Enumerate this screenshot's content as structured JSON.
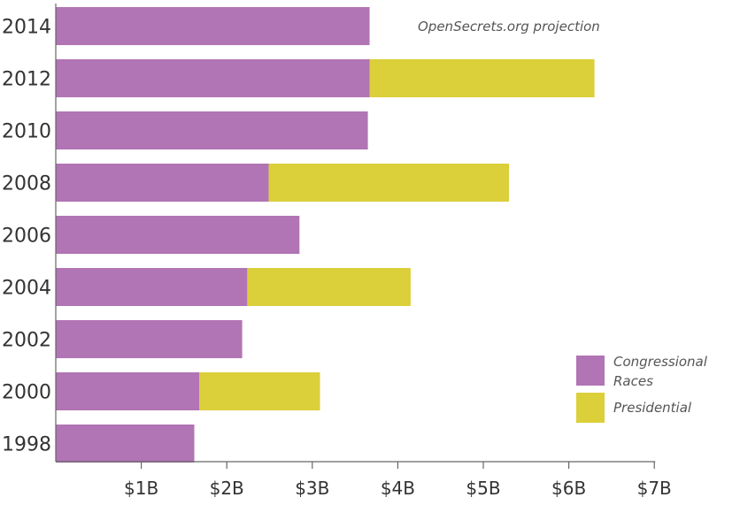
{
  "chart_data": {
    "type": "bar",
    "orientation": "horizontal",
    "stacked": true,
    "categories": [
      "2014",
      "2012",
      "2010",
      "2008",
      "2006",
      "2004",
      "2002",
      "2000",
      "1998"
    ],
    "series": [
      {
        "name": "Congressional Races",
        "values": [
          3.67,
          3.67,
          3.65,
          2.49,
          2.85,
          2.24,
          2.18,
          1.68,
          1.62
        ]
      },
      {
        "name": "Presidential",
        "values": [
          0,
          2.63,
          0,
          2.81,
          0,
          1.91,
          0,
          1.41,
          0
        ]
      }
    ],
    "x_ticks": [
      "$1B",
      "$2B",
      "$3B",
      "$4B",
      "$5B",
      "$6B",
      "$7B"
    ],
    "x_tick_values": [
      1,
      2,
      3,
      4,
      5,
      6,
      7
    ],
    "xlim": [
      0,
      7
    ],
    "annotation": "OpenSecrets.org projection",
    "legend": {
      "placement": "bottom-right",
      "items": [
        {
          "label_lines": [
            "Congressional",
            "Races"
          ],
          "series": "Congressional Races"
        },
        {
          "label_lines": [
            "Presidential"
          ],
          "series": "Presidential"
        }
      ]
    },
    "colors": {
      "congressional": "#b174b4",
      "presidential": "#dbcf3a",
      "axis": "#666666",
      "text": "#333333"
    },
    "grid": false
  }
}
